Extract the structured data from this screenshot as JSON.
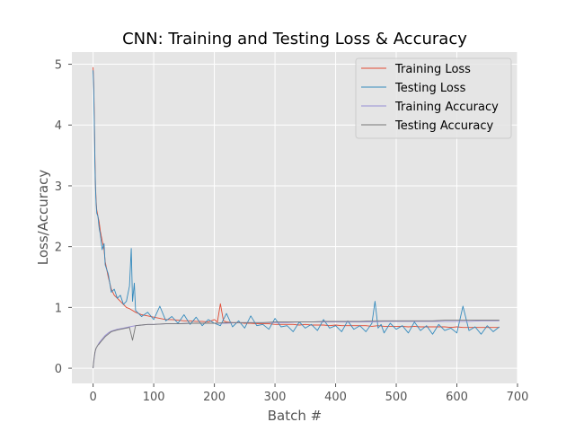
{
  "chart_data": {
    "type": "line",
    "title": "CNN: Training and Testing Loss & Accuracy",
    "xlabel": "Batch #",
    "ylabel": "Loss/Accuracy",
    "xlim": [
      -35,
      700
    ],
    "ylim": [
      -0.25,
      5.2
    ],
    "x_ticks": [
      0,
      100,
      200,
      300,
      400,
      500,
      600,
      700
    ],
    "y_ticks": [
      0,
      1,
      2,
      3,
      4,
      5
    ],
    "grid": true,
    "legend_position": "top-right",
    "background": "#e5e5e5",
    "series": [
      {
        "name": "Training Loss",
        "color": "#e24a33",
        "x": [
          0,
          1,
          2,
          3,
          4,
          5,
          6,
          8,
          10,
          12,
          15,
          18,
          20,
          25,
          30,
          35,
          40,
          45,
          50,
          55,
          60,
          65,
          70,
          75,
          80,
          90,
          100,
          110,
          120,
          130,
          140,
          150,
          160,
          170,
          180,
          190,
          200,
          205,
          210,
          215,
          220,
          230,
          240,
          250,
          260,
          270,
          280,
          290,
          300,
          310,
          320,
          330,
          340,
          350,
          360,
          370,
          380,
          390,
          400,
          410,
          420,
          430,
          440,
          450,
          460,
          470,
          480,
          490,
          500,
          510,
          520,
          530,
          540,
          550,
          560,
          570,
          580,
          590,
          600,
          610,
          620,
          630,
          640,
          650,
          660,
          670
        ],
        "values": [
          4.95,
          4.7,
          4.1,
          3.5,
          3.0,
          2.75,
          2.6,
          2.5,
          2.4,
          2.25,
          2.1,
          1.95,
          1.75,
          1.5,
          1.3,
          1.2,
          1.15,
          1.1,
          1.05,
          1.0,
          0.98,
          0.95,
          0.92,
          0.9,
          0.88,
          0.86,
          0.84,
          0.82,
          0.8,
          0.8,
          0.79,
          0.78,
          0.78,
          0.77,
          0.77,
          0.76,
          0.8,
          0.76,
          1.06,
          0.78,
          0.76,
          0.75,
          0.75,
          0.74,
          0.74,
          0.73,
          0.73,
          0.73,
          0.72,
          0.72,
          0.72,
          0.72,
          0.71,
          0.72,
          0.71,
          0.71,
          0.71,
          0.7,
          0.71,
          0.7,
          0.7,
          0.7,
          0.7,
          0.7,
          0.69,
          0.7,
          0.69,
          0.69,
          0.69,
          0.69,
          0.68,
          0.69,
          0.68,
          0.68,
          0.68,
          0.68,
          0.68,
          0.67,
          0.68,
          0.67,
          0.67,
          0.67,
          0.67,
          0.67,
          0.67,
          0.67
        ]
      },
      {
        "name": "Testing Loss",
        "color": "#348abd",
        "x": [
          0,
          1,
          2,
          3,
          4,
          5,
          6,
          8,
          10,
          12,
          15,
          18,
          20,
          25,
          30,
          35,
          40,
          45,
          50,
          55,
          60,
          63,
          65,
          68,
          70,
          75,
          80,
          90,
          100,
          110,
          120,
          130,
          140,
          150,
          160,
          170,
          180,
          190,
          200,
          210,
          220,
          230,
          240,
          250,
          260,
          270,
          280,
          290,
          300,
          310,
          320,
          330,
          340,
          350,
          360,
          370,
          380,
          390,
          400,
          410,
          420,
          430,
          440,
          450,
          460,
          465,
          470,
          475,
          480,
          490,
          500,
          510,
          520,
          530,
          540,
          550,
          560,
          570,
          580,
          590,
          600,
          610,
          620,
          630,
          640,
          650,
          660,
          670
        ],
        "values": [
          4.9,
          4.6,
          4.0,
          3.4,
          2.95,
          2.7,
          2.55,
          2.5,
          2.3,
          2.2,
          1.95,
          2.05,
          1.7,
          1.55,
          1.25,
          1.3,
          1.15,
          1.2,
          1.05,
          1.1,
          1.35,
          1.97,
          1.1,
          1.4,
          0.95,
          0.9,
          0.85,
          0.92,
          0.8,
          1.02,
          0.78,
          0.85,
          0.74,
          0.88,
          0.72,
          0.84,
          0.7,
          0.8,
          0.74,
          0.7,
          0.9,
          0.68,
          0.78,
          0.66,
          0.86,
          0.7,
          0.72,
          0.64,
          0.82,
          0.68,
          0.7,
          0.6,
          0.76,
          0.66,
          0.72,
          0.62,
          0.8,
          0.66,
          0.7,
          0.6,
          0.78,
          0.64,
          0.7,
          0.6,
          0.74,
          1.1,
          0.66,
          0.72,
          0.58,
          0.74,
          0.64,
          0.7,
          0.58,
          0.76,
          0.62,
          0.7,
          0.56,
          0.72,
          0.62,
          0.66,
          0.58,
          1.02,
          0.62,
          0.68,
          0.56,
          0.7,
          0.6,
          0.68
        ]
      },
      {
        "name": "Training Accuracy",
        "color": "#988ed5",
        "x": [
          0,
          1,
          2,
          3,
          4,
          5,
          8,
          10,
          15,
          20,
          25,
          30,
          40,
          50,
          60,
          70,
          80,
          90,
          100,
          120,
          140,
          160,
          180,
          200,
          220,
          240,
          260,
          280,
          300,
          320,
          340,
          360,
          380,
          400,
          420,
          440,
          460,
          480,
          500,
          520,
          540,
          560,
          580,
          600,
          620,
          640,
          660,
          670
        ],
        "values": [
          0.0,
          0.1,
          0.18,
          0.24,
          0.3,
          0.33,
          0.38,
          0.42,
          0.48,
          0.54,
          0.58,
          0.61,
          0.64,
          0.66,
          0.68,
          0.7,
          0.71,
          0.72,
          0.72,
          0.73,
          0.73,
          0.74,
          0.74,
          0.74,
          0.74,
          0.75,
          0.75,
          0.75,
          0.75,
          0.75,
          0.76,
          0.76,
          0.76,
          0.76,
          0.76,
          0.76,
          0.76,
          0.77,
          0.77,
          0.77,
          0.77,
          0.77,
          0.77,
          0.77,
          0.77,
          0.78,
          0.78,
          0.78
        ]
      },
      {
        "name": "Testing Accuracy",
        "color": "#777777",
        "x": [
          0,
          1,
          2,
          3,
          4,
          5,
          8,
          10,
          15,
          20,
          25,
          30,
          40,
          50,
          60,
          65,
          70,
          80,
          90,
          100,
          120,
          140,
          160,
          180,
          200,
          220,
          240,
          260,
          280,
          300,
          320,
          340,
          360,
          380,
          400,
          420,
          440,
          460,
          480,
          500,
          520,
          540,
          560,
          580,
          600,
          620,
          640,
          660,
          670
        ],
        "values": [
          0.0,
          0.12,
          0.2,
          0.26,
          0.3,
          0.33,
          0.38,
          0.4,
          0.46,
          0.52,
          0.56,
          0.6,
          0.63,
          0.65,
          0.67,
          0.46,
          0.7,
          0.71,
          0.72,
          0.72,
          0.73,
          0.73,
          0.74,
          0.74,
          0.74,
          0.75,
          0.75,
          0.75,
          0.75,
          0.76,
          0.76,
          0.76,
          0.76,
          0.77,
          0.77,
          0.77,
          0.77,
          0.78,
          0.78,
          0.78,
          0.78,
          0.78,
          0.78,
          0.79,
          0.79,
          0.79,
          0.79,
          0.79,
          0.79
        ]
      }
    ]
  }
}
